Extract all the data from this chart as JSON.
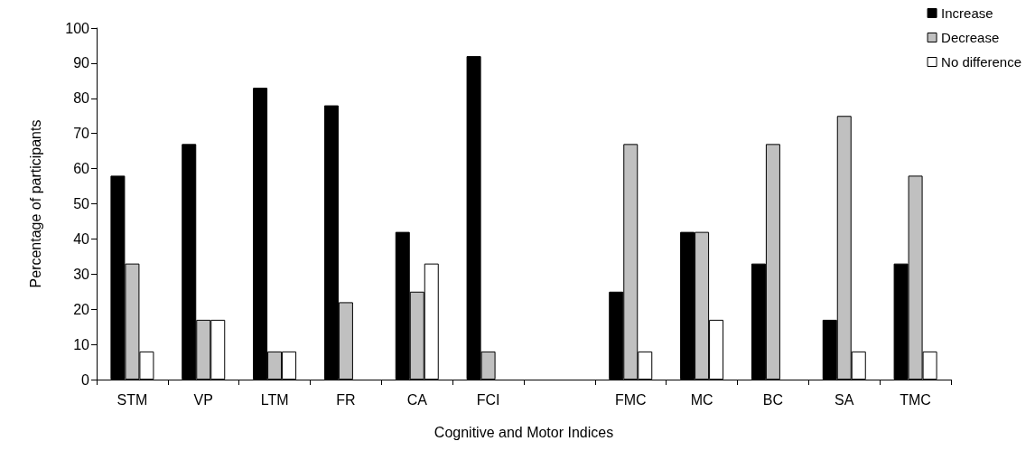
{
  "chart_data": {
    "type": "bar",
    "xlabel": "Cognitive and Motor Indices",
    "ylabel": "Percentage of participants",
    "categories": [
      "STM",
      "VP",
      "LTM",
      "FR",
      "CA",
      "FCI",
      null,
      "FMC",
      "MC",
      "BC",
      "SA",
      "TMC"
    ],
    "series": [
      {
        "name": "Increase",
        "color": "#000000",
        "values": [
          58,
          67,
          83,
          78,
          42,
          92,
          null,
          25,
          42,
          33,
          17,
          33
        ]
      },
      {
        "name": "Decrease",
        "color": "#c0c0c0",
        "values": [
          33,
          17,
          8,
          22,
          25,
          8,
          null,
          67,
          42,
          67,
          75,
          58
        ]
      },
      {
        "name": "No difference",
        "color": "#ffffff",
        "values": [
          8,
          17,
          8,
          null,
          33,
          null,
          null,
          8,
          17,
          null,
          8,
          8
        ]
      }
    ],
    "ylim": [
      0,
      100
    ],
    "yticks": [
      0,
      10,
      20,
      30,
      40,
      50,
      60,
      70,
      80,
      90,
      100
    ],
    "grid": false,
    "legend": "top right"
  }
}
